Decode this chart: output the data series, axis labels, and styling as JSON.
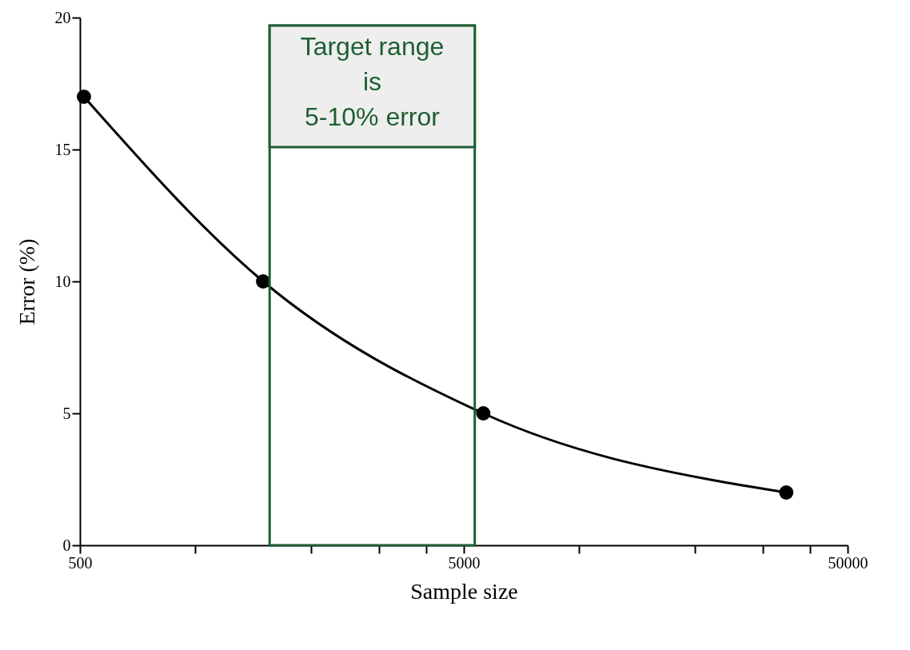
{
  "chart_data": {
    "type": "line",
    "xlabel": "Sample size",
    "ylabel": "Error (%)",
    "log": "x",
    "x": [
      512,
      1500,
      5620,
      34600
    ],
    "series": [
      {
        "color": "#000000",
        "values": [
          17,
          10,
          5,
          2
        ]
      }
    ],
    "marker": "circle",
    "xlim": [
      500,
      50000
    ],
    "xticks": [
      500,
      {
        "value": 1000,
        "label": null
      },
      {
        "value": 2000,
        "label": null
      },
      {
        "value": 3000,
        "label": null
      },
      {
        "value": 4000,
        "label": null
      },
      5000,
      {
        "value": 10000,
        "label": null
      },
      {
        "value": 20000,
        "label": null
      },
      {
        "value": 30000,
        "label": null
      },
      {
        "value": 40000,
        "label": null
      },
      50000
    ],
    "ylim": [
      0,
      20
    ],
    "yticks": [
      0,
      5,
      10,
      15,
      20
    ],
    "bands": [
      {
        "axis": "x",
        "from": 1560,
        "to": 5340,
        "label": "Target range\nis\n5-10% error",
        "color": "#1e5e32"
      }
    ]
  }
}
